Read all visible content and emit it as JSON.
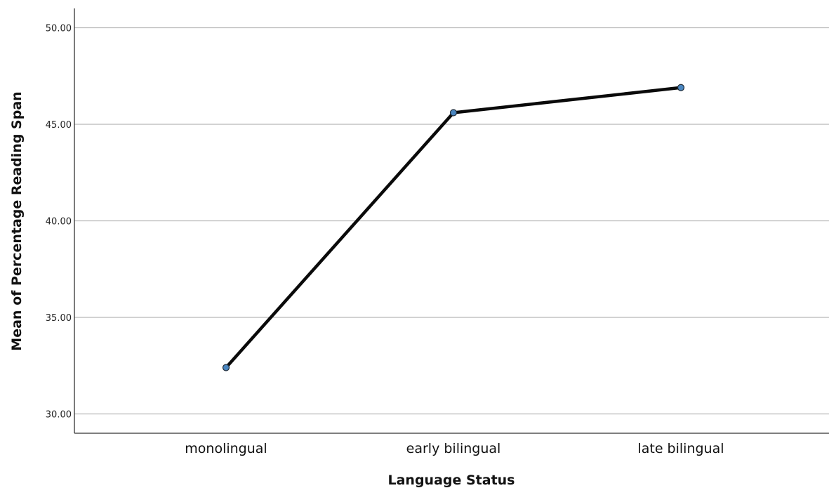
{
  "chart_data": {
    "type": "line",
    "xlabel": "Language Status",
    "ylabel": "Mean of Percentage Reading Span",
    "categories": [
      "monolingual",
      "early bilingual",
      "late bilingual"
    ],
    "series": [
      {
        "values": [
          32.4,
          45.6,
          46.9
        ]
      }
    ],
    "ylim": [
      29,
      51
    ],
    "yticks": [
      30,
      35,
      40,
      45,
      50
    ],
    "ytick_labels": [
      "30.00",
      "35.00",
      "40.00",
      "45.00",
      "50.00"
    ],
    "grid": "horizontal",
    "colors": {
      "line": "#0a0a0a",
      "marker": "#4a86c0",
      "grid": "#b8b8b8",
      "axis": "#333333"
    }
  }
}
